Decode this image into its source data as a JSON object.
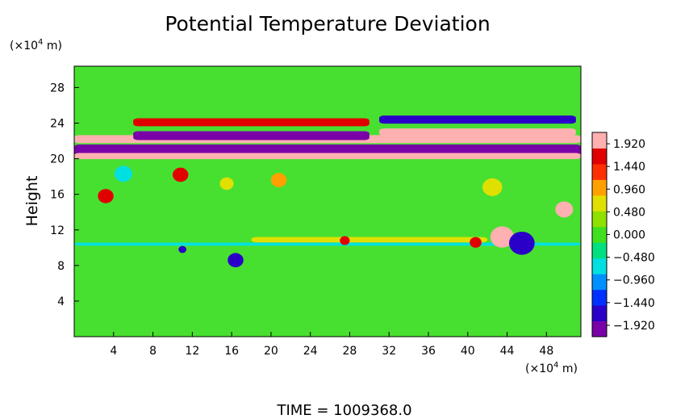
{
  "chart_data": {
    "type": "heatmap",
    "title": "Potential Temperature Deviation",
    "ylabel": "Height",
    "xunit_base": "(×10",
    "xunit_exp": "4",
    "xunit_tail": " m)",
    "yunit_base": "(×10",
    "yunit_exp": "4",
    "yunit_tail": " m)",
    "xlim": [
      0,
      51.5
    ],
    "ylim": [
      0,
      30.4
    ],
    "xticks": [
      4,
      8,
      12,
      16,
      20,
      24,
      28,
      32,
      36,
      40,
      44,
      48
    ],
    "xtick_labels": [
      "4",
      "8",
      "12",
      "16",
      "20",
      "24",
      "28",
      "32",
      "36",
      "40",
      "44",
      "48"
    ],
    "yticks": [
      4,
      8,
      12,
      16,
      20,
      24,
      28
    ],
    "ytick_labels": [
      "4",
      "8",
      "12",
      "16",
      "20",
      "24",
      "28"
    ],
    "colorbar": {
      "range": [
        -2.16,
        2.16
      ],
      "ticks": [
        1.92,
        1.44,
        0.96,
        0.48,
        0.0,
        -0.48,
        -0.96,
        -1.44,
        -1.92
      ],
      "tick_labels": [
        "1.920",
        "1.440",
        "0.960",
        "0.480",
        "0.000",
        "−0.480",
        "−0.960",
        "−1.440",
        "−1.920"
      ],
      "colors": [
        "#7a00a8",
        "#2a00c8",
        "#0030ff",
        "#0090ff",
        "#00e0e0",
        "#00e080",
        "#40e020",
        "#90e000",
        "#e0e000",
        "#ffa000",
        "#ff3000",
        "#e00000",
        "#ffb0b0"
      ]
    },
    "features": [
      {
        "kind": "band",
        "x0": 0,
        "x1": 51.5,
        "y": 21.0,
        "h": 1.2,
        "v": -2.1
      },
      {
        "kind": "band",
        "x0": 0,
        "x1": 51.5,
        "y": 22.2,
        "h": 0.9,
        "v": 2.1
      },
      {
        "kind": "band",
        "x0": 0,
        "x1": 51.5,
        "y": 20.3,
        "h": 0.7,
        "v": 2.0
      },
      {
        "kind": "band",
        "x0": 6,
        "x1": 30,
        "y": 22.6,
        "h": 1.0,
        "v": -2.1
      },
      {
        "kind": "band",
        "x0": 6,
        "x1": 30,
        "y": 24.1,
        "h": 0.9,
        "v": 1.5
      },
      {
        "kind": "band",
        "x0": 31,
        "x1": 51,
        "y": 24.4,
        "h": 0.9,
        "v": -1.7
      },
      {
        "kind": "band",
        "x0": 31,
        "x1": 51,
        "y": 23.0,
        "h": 0.8,
        "v": 2.1
      },
      {
        "kind": "band",
        "x0": 0,
        "x1": 51.5,
        "y": 10.4,
        "h": 0.35,
        "v": -0.8
      },
      {
        "kind": "band",
        "x0": 18,
        "x1": 42,
        "y": 10.9,
        "h": 0.6,
        "v": 0.7
      },
      {
        "kind": "blob",
        "x": 43.5,
        "y": 11.2,
        "r": 1.2,
        "v": 1.9
      },
      {
        "kind": "blob",
        "x": 45.5,
        "y": 10.5,
        "r": 1.3,
        "v": -1.8
      },
      {
        "kind": "blob",
        "x": 49.8,
        "y": 14.3,
        "r": 0.9,
        "v": 1.9
      },
      {
        "kind": "blob",
        "x": 16.4,
        "y": 8.6,
        "r": 0.8,
        "v": -1.8
      },
      {
        "kind": "blob",
        "x": 3.2,
        "y": 15.8,
        "r": 0.8,
        "v": 1.6
      },
      {
        "kind": "blob",
        "x": 10.8,
        "y": 18.2,
        "r": 0.8,
        "v": 1.6
      },
      {
        "kind": "blob",
        "x": 5.0,
        "y": 18.3,
        "r": 0.9,
        "v": -0.8
      },
      {
        "kind": "blob",
        "x": 15.5,
        "y": 17.2,
        "r": 0.7,
        "v": 0.8
      },
      {
        "kind": "blob",
        "x": 20.8,
        "y": 17.6,
        "r": 0.8,
        "v": 0.9
      },
      {
        "kind": "blob",
        "x": 42.5,
        "y": 16.8,
        "r": 1.0,
        "v": 0.7
      },
      {
        "kind": "blob",
        "x": 11.0,
        "y": 9.8,
        "r": 0.4,
        "v": -1.6
      },
      {
        "kind": "blob",
        "x": 27.5,
        "y": 10.8,
        "r": 0.5,
        "v": 1.6
      },
      {
        "kind": "blob",
        "x": 40.8,
        "y": 10.6,
        "r": 0.6,
        "v": 1.7
      }
    ],
    "time_label": "TIME  =  1009368.0"
  }
}
